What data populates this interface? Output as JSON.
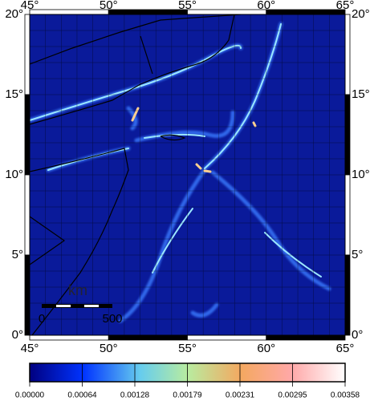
{
  "map": {
    "lon_labels": [
      "45°",
      "50°",
      "55°",
      "60°",
      "65°"
    ],
    "lat_labels": [
      "20°",
      "15°",
      "10°",
      "5°",
      "0°"
    ],
    "scale_bar": {
      "unit": "km",
      "start": "0",
      "end": "500"
    }
  },
  "colorbar": {
    "ticks": [
      "0.00000",
      "0.00064",
      "0.00128",
      "0.00179",
      "0.00231",
      "0.00295",
      "0.00358"
    ]
  }
}
